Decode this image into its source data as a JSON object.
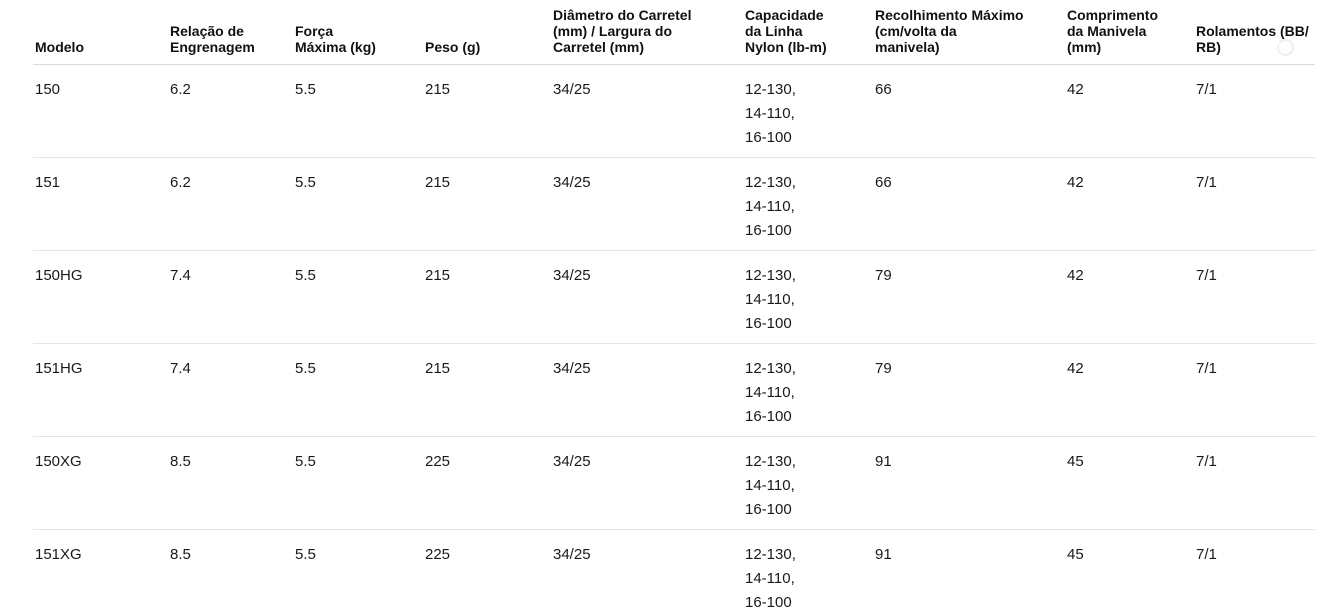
{
  "page": {
    "background_color": "#ffffff",
    "text_color": "#191919",
    "header_border_color": "#d9d9d9",
    "row_border_color": "#e5e5e5"
  },
  "icons": {
    "ghost_icon": "faint-circle-glyph"
  },
  "table": {
    "column_ids": [
      "modelo",
      "relacao-de-engrenagem",
      "forca-maxima",
      "peso",
      "diametro-largura-carretel",
      "capacidade-linha-nylon",
      "recolhimento-maximo",
      "comprimento-manivela",
      "rolamentos"
    ],
    "columns": [
      "Modelo",
      "Relação de\nEngrenagem",
      "Força\nMáxima (kg)",
      "Peso (g)",
      "Diâmetro do Carretel\n(mm) / Largura do\nCarretel (mm)",
      "Capacidade\nda Linha\nNylon (lb-m)",
      "Recolhimento Máximo\n(cm/volta da\nmanivela)",
      "Comprimento\nda Manivela\n(mm)",
      "Rolamentos (BB/\nRB)"
    ],
    "rows": [
      [
        "150",
        "6.2",
        "5.5",
        "215",
        "34/25",
        "12-130,\n14-110,\n16-100",
        "66",
        "42",
        "7/1"
      ],
      [
        "151",
        "6.2",
        "5.5",
        "215",
        "34/25",
        "12-130,\n14-110,\n16-100",
        "66",
        "42",
        "7/1"
      ],
      [
        "150HG",
        "7.4",
        "5.5",
        "215",
        "34/25",
        "12-130,\n14-110,\n16-100",
        "79",
        "42",
        "7/1"
      ],
      [
        "151HG",
        "7.4",
        "5.5",
        "215",
        "34/25",
        "12-130,\n14-110,\n16-100",
        "79",
        "42",
        "7/1"
      ],
      [
        "150XG",
        "8.5",
        "5.5",
        "225",
        "34/25",
        "12-130,\n14-110,\n16-100",
        "91",
        "45",
        "7/1"
      ],
      [
        "151XG",
        "8.5",
        "5.5",
        "225",
        "34/25",
        "12-130,\n14-110,\n16-100",
        "91",
        "45",
        "7/1"
      ]
    ]
  }
}
